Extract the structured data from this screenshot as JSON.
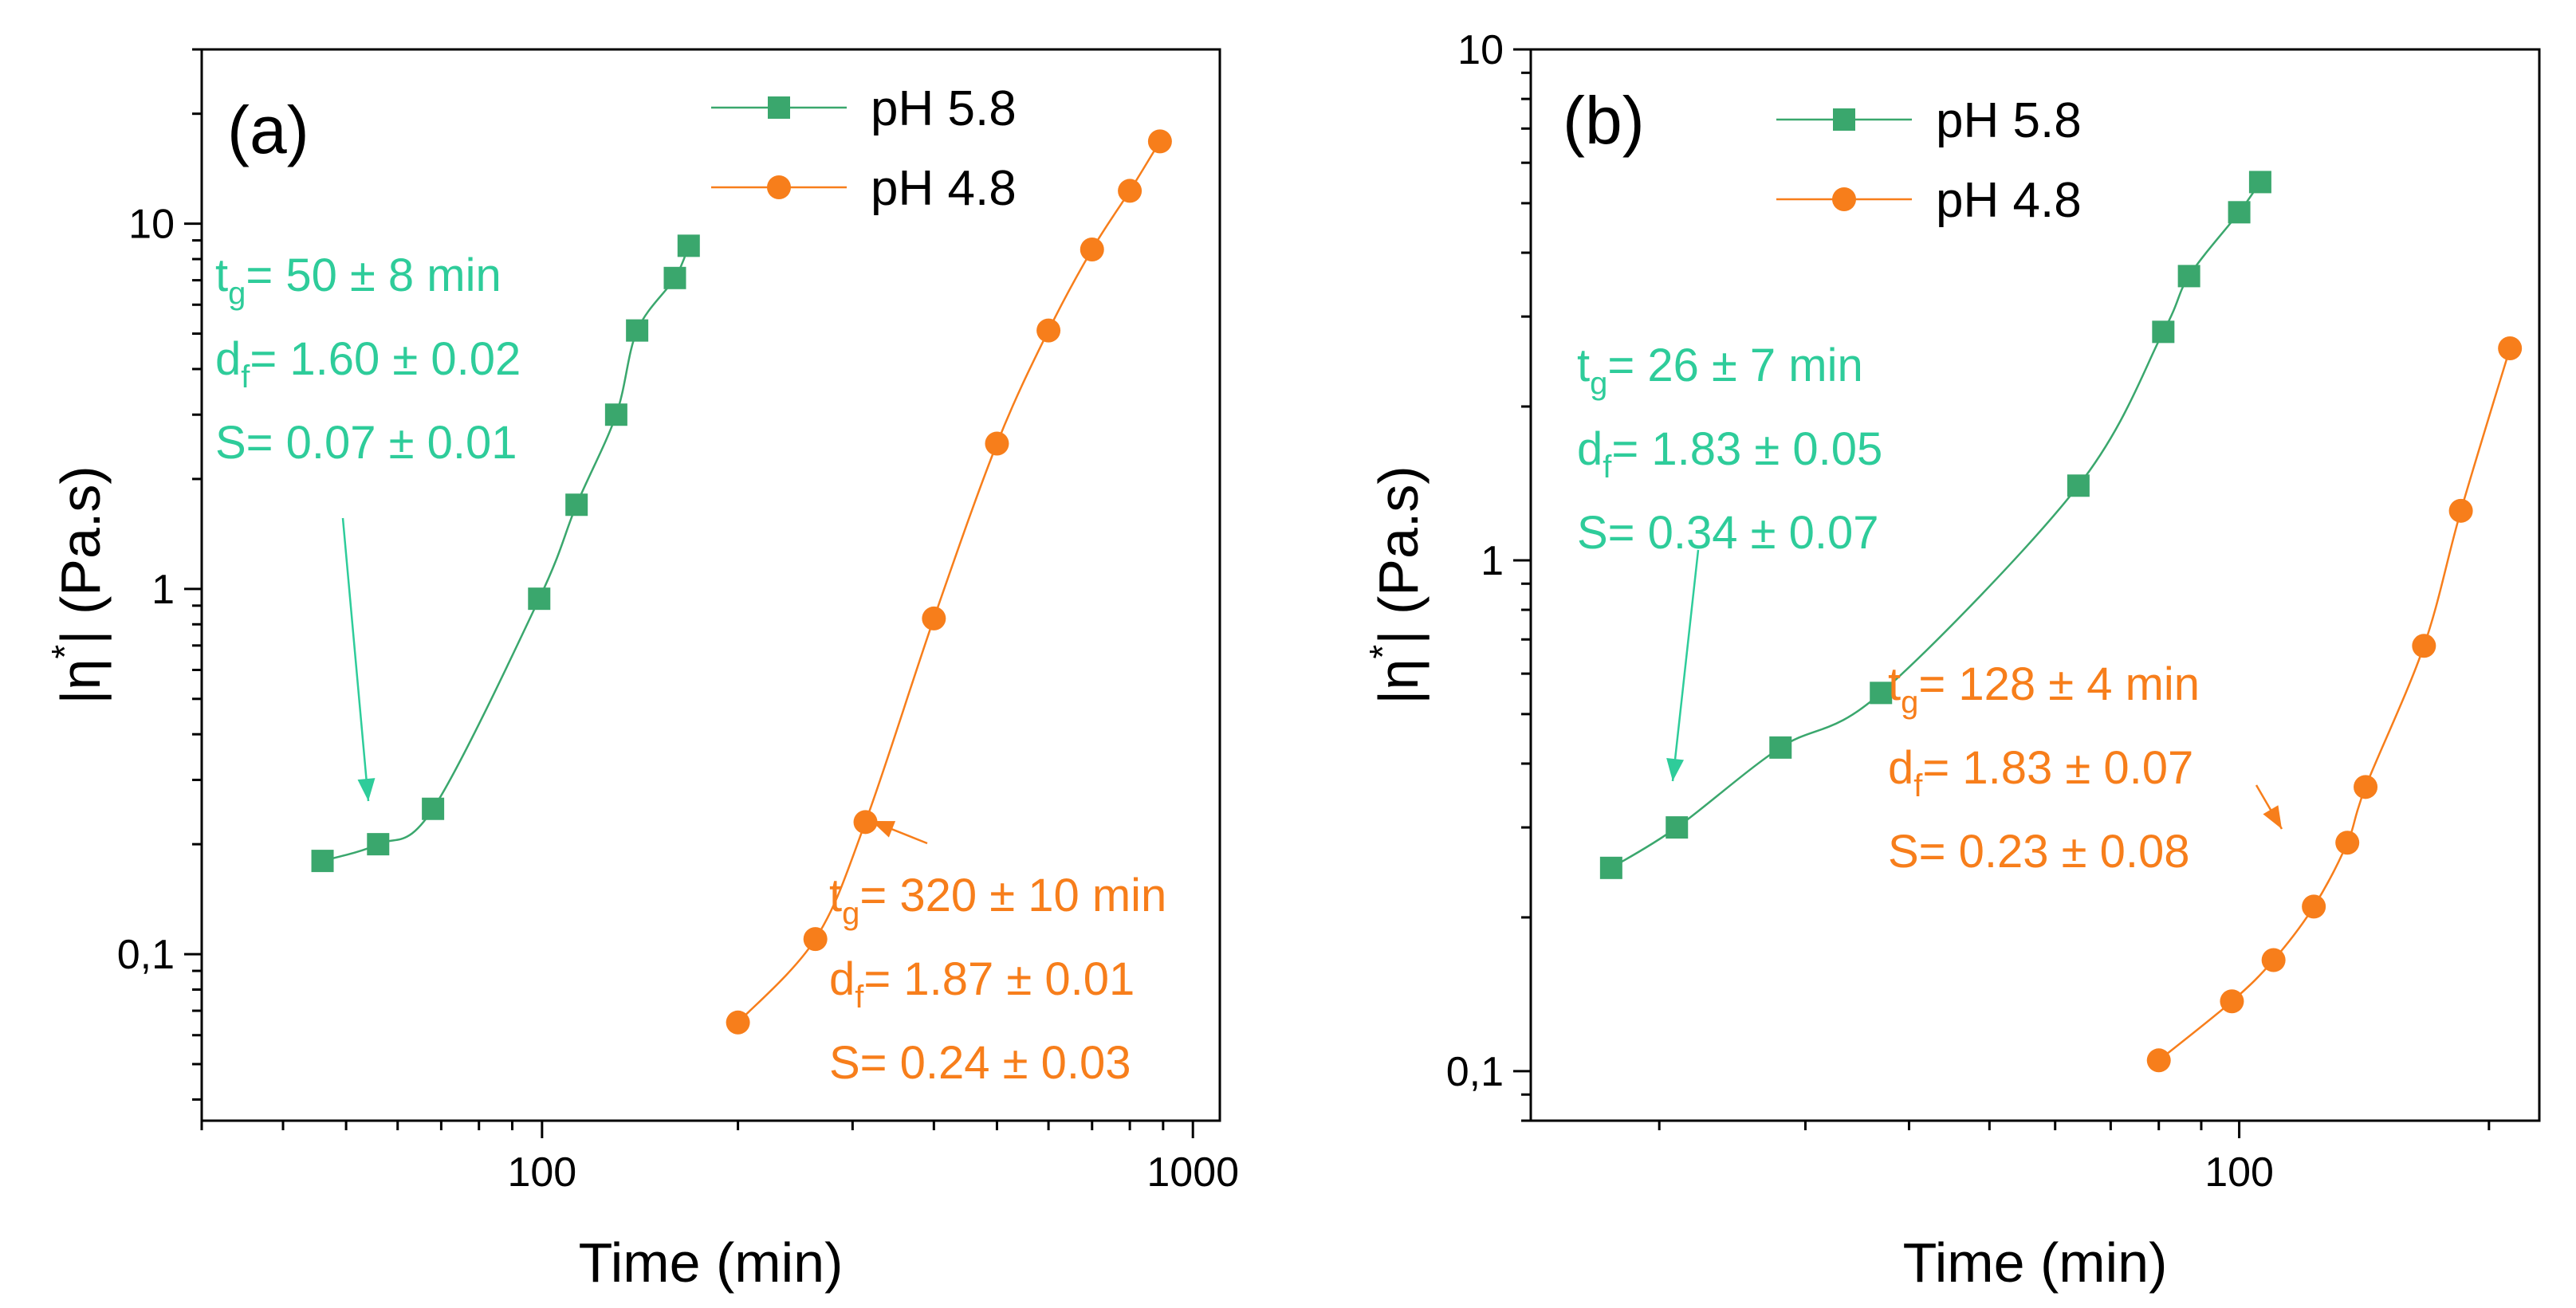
{
  "colors": {
    "green": "#3aa76d",
    "orange": "#f77e1b",
    "annot_green": "#2ecc9a",
    "axis": "#000000"
  },
  "chart_data": [
    {
      "panel": "(a)",
      "type": "scatter",
      "xscale": "log",
      "yscale": "log",
      "xlim": [
        30,
        1100
      ],
      "ylim": [
        0.035,
        30
      ],
      "xlabel": "Time (min)",
      "ylabel_main": "|η",
      "ylabel_sup": "*",
      "ylabel_rest": "| (Pa.s)",
      "xticks": [
        {
          "v": 100,
          "label": "100"
        },
        {
          "v": 1000,
          "label": "1000"
        }
      ],
      "yticks": [
        {
          "v": 0.1,
          "label": "0,1"
        },
        {
          "v": 1,
          "label": "1"
        },
        {
          "v": 10,
          "label": "10"
        }
      ],
      "legend": [
        "pH 5.8",
        "pH 4.8"
      ],
      "series": [
        {
          "name": "pH 5.8",
          "marker": "square",
          "color": "green",
          "x": [
            46,
            56,
            68,
            99,
            113,
            130,
            140,
            160,
            168
          ],
          "y": [
            0.18,
            0.2,
            0.25,
            0.94,
            1.7,
            3.0,
            5.1,
            7.1,
            8.7
          ]
        },
        {
          "name": "pH 4.8",
          "marker": "circle",
          "color": "orange",
          "x": [
            200,
            263,
            314,
            400,
            500,
            600,
            700,
            800,
            890
          ],
          "y": [
            0.065,
            0.11,
            0.23,
            0.83,
            2.5,
            5.1,
            8.5,
            12.3,
            16.8
          ]
        }
      ],
      "annotations": [
        {
          "color": "annot_green",
          "lines": [
            {
              "pre": "t",
              "sub": "g",
              "post": "= 50 ± 8 min"
            },
            {
              "pre": "d",
              "sub": "f",
              "post": "= 1.60 ± 0.02"
            },
            {
              "pre": "S= 0.07 ± 0.01",
              "sub": "",
              "post": ""
            }
          ]
        },
        {
          "color": "orange",
          "lines": [
            {
              "pre": "t",
              "sub": "g",
              "post": "= 320 ± 10 min"
            },
            {
              "pre": "d",
              "sub": "f",
              "post": "= 1.87 ± 0.01"
            },
            {
              "pre": "S= 0.24 ± 0.03",
              "sub": "",
              "post": ""
            }
          ]
        }
      ]
    },
    {
      "panel": "(b)",
      "type": "scatter",
      "xscale": "log",
      "yscale": "log",
      "xlim": [
        14,
        230
      ],
      "ylim": [
        0.08,
        10
      ],
      "xlabel": "Time (min)",
      "ylabel_main": "|η",
      "ylabel_sup": "*",
      "ylabel_rest": "| (Pa.s)",
      "xticks": [
        {
          "v": 100,
          "label": "100"
        }
      ],
      "yticks": [
        {
          "v": 0.1,
          "label": "0,1"
        },
        {
          "v": 1,
          "label": "1"
        },
        {
          "v": 10,
          "label": "10"
        }
      ],
      "legend": [
        "pH 5.8",
        "pH 4.8"
      ],
      "series": [
        {
          "name": "pH 5.8",
          "marker": "square",
          "color": "green",
          "x": [
            17.5,
            21,
            28,
            37,
            64,
            81,
            87,
            100,
            106
          ],
          "y": [
            0.25,
            0.3,
            0.43,
            0.55,
            1.4,
            2.8,
            3.6,
            4.8,
            5.5
          ]
        },
        {
          "name": "pH 4.8",
          "marker": "circle",
          "color": "orange",
          "x": [
            80,
            98,
            110,
            123,
            135,
            142,
            167,
            185,
            212
          ],
          "y": [
            0.105,
            0.137,
            0.165,
            0.21,
            0.28,
            0.36,
            0.68,
            1.25,
            2.6
          ]
        }
      ],
      "annotations": [
        {
          "color": "annot_green",
          "lines": [
            {
              "pre": "t",
              "sub": "g",
              "post": "= 26 ± 7 min"
            },
            {
              "pre": "d",
              "sub": "f",
              "post": "= 1.83 ± 0.05"
            },
            {
              "pre": "S= 0.34 ± 0.07",
              "sub": "",
              "post": ""
            }
          ]
        },
        {
          "color": "orange",
          "lines": [
            {
              "pre": "t",
              "sub": "g",
              "post": "= 128 ± 4 min"
            },
            {
              "pre": "d",
              "sub": "f",
              "post": "= 1.83 ± 0.07"
            },
            {
              "pre": "S= 0.23 ± 0.08",
              "sub": "",
              "post": ""
            }
          ]
        }
      ]
    }
  ]
}
